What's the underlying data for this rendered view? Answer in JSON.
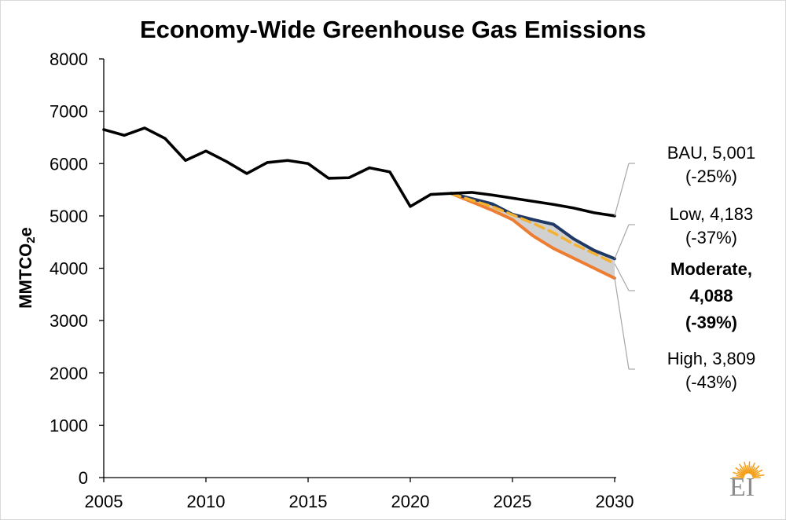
{
  "chart_data": {
    "type": "line",
    "title": "Economy-Wide Greenhouse Gas Emissions",
    "ylabel": "MMTCO",
    "ylabel_sub": "2",
    "ylabel_suffix": "e",
    "xlabel": "",
    "xlim": [
      2005,
      2030
    ],
    "ylim": [
      0,
      8000
    ],
    "yticks": [
      0,
      1000,
      2000,
      3000,
      4000,
      5000,
      6000,
      7000,
      8000
    ],
    "xticks": [
      2005,
      2010,
      2015,
      2020,
      2025,
      2030
    ],
    "grid": false,
    "series": [
      {
        "key": "historical",
        "color": "#000000",
        "style": "solid",
        "x": [
          2005,
          2006,
          2007,
          2008,
          2009,
          2010,
          2011,
          2012,
          2013,
          2014,
          2015,
          2016,
          2017,
          2018,
          2019,
          2020,
          2021,
          2022
        ],
        "y": [
          6650,
          6540,
          6680,
          6480,
          6060,
          6240,
          6040,
          5810,
          6020,
          6060,
          6000,
          5720,
          5730,
          5920,
          5840,
          5180,
          5410,
          5430
        ]
      },
      {
        "key": "bau",
        "color": "#000000",
        "style": "solid",
        "x": [
          2022,
          2023,
          2024,
          2025,
          2026,
          2027,
          2028,
          2029,
          2030
        ],
        "y": [
          5430,
          5450,
          5400,
          5340,
          5280,
          5220,
          5150,
          5060,
          5001
        ]
      },
      {
        "key": "low",
        "color": "#1f3864",
        "style": "solid",
        "x": [
          2022,
          2023,
          2024,
          2025,
          2026,
          2027,
          2028,
          2029,
          2030
        ],
        "y": [
          5430,
          5330,
          5230,
          5030,
          4930,
          4840,
          4560,
          4340,
          4183
        ]
      },
      {
        "key": "moderate",
        "color": "#f4b132",
        "style": "dashed",
        "x": [
          2022,
          2023,
          2024,
          2025,
          2026,
          2027,
          2028,
          2029,
          2030
        ],
        "y": [
          5430,
          5300,
          5180,
          5020,
          4860,
          4680,
          4460,
          4280,
          4088
        ]
      },
      {
        "key": "high",
        "color": "#ed7d31",
        "style": "solid",
        "x": [
          2022,
          2023,
          2024,
          2025,
          2026,
          2027,
          2028,
          2029,
          2030
        ],
        "y": [
          5430,
          5270,
          5110,
          4930,
          4620,
          4380,
          4190,
          4000,
          3809
        ]
      }
    ],
    "band_color": "#c9c9c9",
    "annotations": [
      {
        "key": "bau",
        "line1": "BAU,  5,001",
        "line2": "(-25%)",
        "line3": "",
        "bold": false,
        "value": 5001
      },
      {
        "key": "low",
        "line1": "Low,  4,183",
        "line2": "(-37%)",
        "line3": "",
        "bold": false,
        "value": 4183
      },
      {
        "key": "moderate",
        "line1": "Moderate,",
        "line2": "4,088",
        "line3": "(-39%)",
        "bold": true,
        "value": 4088
      },
      {
        "key": "high",
        "line1": "High,  3,809",
        "line2": "(-43%)",
        "line3": "",
        "bold": false,
        "value": 3809
      }
    ]
  },
  "logo": {
    "text": "EI",
    "name": "ei-sunburst-logo",
    "color": "#f4a11d"
  }
}
